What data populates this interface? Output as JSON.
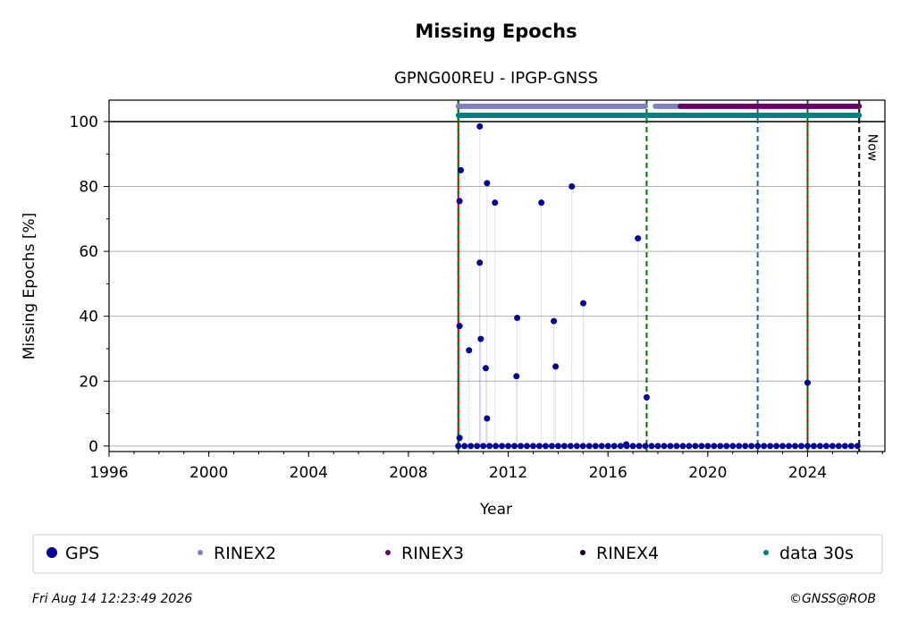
{
  "chart_data": {
    "type": "scatter",
    "title": "Missing Epochs",
    "subtitle": "GPNG00REU - IPGP-GNSS",
    "x_label": "Year",
    "y_label": "Missing Epochs [%]",
    "xlim": [
      1996,
      2027.1
    ],
    "ylim": [
      -1.7,
      106.6
    ],
    "xticks": [
      1996,
      2000,
      2004,
      2008,
      2012,
      2016,
      2020,
      2024
    ],
    "yticks": [
      0,
      20,
      40,
      60,
      80,
      100
    ],
    "grid": true,
    "reference_line": 100,
    "vlines": [
      {
        "x": 2010.0,
        "color": "#cc0000",
        "dashed": false
      },
      {
        "x": 2010.0,
        "color": "#007700",
        "dashed": true
      },
      {
        "x": 2017.55,
        "color": "#007700",
        "dashed": true
      },
      {
        "x": 2022.0,
        "color": "#1f5fa8",
        "dashed": true
      },
      {
        "x": 2024.0,
        "color": "#cc0000",
        "dashed": false
      },
      {
        "x": 2024.0,
        "color": "#007700",
        "dashed": true
      },
      {
        "x": 2026.07,
        "color": "#000000",
        "dashed": true
      }
    ],
    "now_label": "Now",
    "now_x": 2026.07,
    "series": [
      {
        "name": "GPS",
        "color": "#000099",
        "x": [
          2010.05,
          2010.05,
          2010.05,
          2010.1,
          2010.43,
          2010.86,
          2010.86,
          2010.9,
          2011.1,
          2011.15,
          2011.15,
          2011.47,
          2012.36,
          2012.33,
          2013.33,
          2013.83,
          2013.9,
          2014.55,
          2015.01,
          2017.2,
          2016.73,
          2017.55,
          2024.0,
          2010,
          2010.25,
          2010.5,
          2010.75,
          2011,
          2011.25,
          2011.5,
          2011.75,
          2012,
          2012.25,
          2012.5,
          2012.75,
          2013,
          2013.25,
          2013.5,
          2013.75,
          2014,
          2014.25,
          2014.5,
          2014.75,
          2015,
          2015.25,
          2015.5,
          2015.75,
          2016,
          2016.25,
          2016.5,
          2016.75,
          2017,
          2017.25,
          2017.5,
          2017.75,
          2018,
          2018.25,
          2018.5,
          2018.75,
          2019,
          2019.25,
          2019.5,
          2019.75,
          2020,
          2020.25,
          2020.5,
          2020.75,
          2021,
          2021.25,
          2021.5,
          2021.75,
          2022,
          2022.25,
          2022.5,
          2022.75,
          2023,
          2023.25,
          2023.5,
          2023.75,
          2024,
          2024.25,
          2024.5,
          2024.75,
          2025,
          2025.25,
          2025.5,
          2025.75,
          2026
        ],
        "values": [
          75.5,
          37,
          2.5,
          85,
          29.5,
          98.5,
          56.5,
          33,
          24,
          81,
          8.5,
          75,
          39.5,
          21.5,
          75,
          38.5,
          24.5,
          80,
          44,
          64,
          0.5,
          15,
          19.5,
          0,
          0,
          0,
          0,
          0,
          0,
          0,
          0,
          0,
          0,
          0,
          0,
          0,
          0,
          0,
          0,
          0,
          0,
          0,
          0,
          0,
          0,
          0,
          0,
          0,
          0,
          0,
          0,
          0,
          0,
          0,
          0,
          0,
          0,
          0,
          0,
          0,
          0,
          0,
          0,
          0,
          0,
          0,
          0,
          0,
          0,
          0,
          0,
          0,
          0,
          0,
          0,
          0,
          0,
          0,
          0,
          0,
          0,
          0,
          0,
          0,
          0,
          0,
          0,
          0
        ]
      },
      {
        "name": "RINEX2",
        "color": "#8080c0",
        "level": 104.7,
        "spans": [
          [
            2010.0,
            2017.5
          ],
          [
            2017.9,
            2018.9
          ]
        ]
      },
      {
        "name": "RINEX3",
        "color": "#660066",
        "level": 104.7,
        "spans": [
          [
            2018.9,
            2026.07
          ]
        ]
      },
      {
        "name": "RINEX4",
        "color": "#1a0020",
        "level": 104.7,
        "spans": []
      },
      {
        "name": "data 30s",
        "color": "#008080",
        "level": 101.9,
        "spans": [
          [
            2010.0,
            2017.5
          ],
          [
            2017.6,
            2026.07
          ]
        ]
      }
    ],
    "timestamp": "Fri Aug 14 12:23:49 2026",
    "credit": "©GNSS@ROB"
  }
}
